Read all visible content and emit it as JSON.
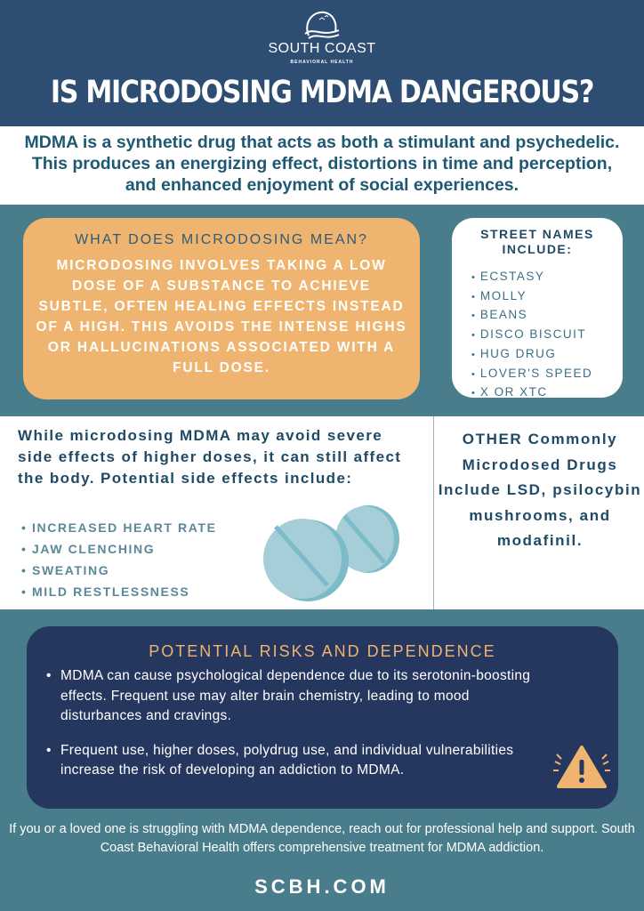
{
  "brand": {
    "name": "SOUTH COAST",
    "subtitle": "BEHAVIORAL HEALTH"
  },
  "title": "IS MICRODOSING MDMA DANGEROUS?",
  "intro": "MDMA is a synthetic drug that acts as both a stimulant and psychedelic. This produces an energizing effect, distortions in time and perception, and enhanced enjoyment of social experiences.",
  "microdosing": {
    "heading": "WHAT DOES MICRODOSING MEAN?",
    "body": "MICRODOSING INVOLVES TAKING A LOW DOSE OF A SUBSTANCE TO ACHIEVE SUBTLE, OFTEN HEALING EFFECTS INSTEAD OF A HIGH. THIS AVOIDS THE INTENSE HIGHS OR HALLUCINATIONS ASSOCIATED WITH A FULL DOSE."
  },
  "street_names": {
    "heading": "STREET NAMES INCLUDE:",
    "items": [
      "ECSTASY",
      "MOLLY",
      "BEANS",
      "DISCO BISCUIT",
      "HUG DRUG",
      "LOVER'S SPEED",
      "X OR XTC"
    ]
  },
  "side_effects": {
    "intro": "While microdosing MDMA may avoid severe side effects of higher doses, it can still affect the body. Potential side effects include:",
    "items": [
      "INCREASED HEART RATE",
      "JAW CLENCHING",
      "SWEATING",
      "MILD RESTLESSNESS"
    ]
  },
  "other": "OTHER Commonly Microdosed Drugs Include LSD, psilocybin mushrooms, and modafinil.",
  "risks": {
    "heading": "POTENTIAL RISKS AND DEPENDENCE",
    "items": [
      "MDMA can cause psychological dependence due to its serotonin-boosting effects. Frequent use may alter brain chemistry, leading to mood disturbances and cravings.",
      "Frequent use, higher doses, polydrug use, and individual vulnerabilities increase the risk of developing an addiction to MDMA."
    ]
  },
  "footer": "If you or a loved one is struggling with MDMA dependence, reach out for professional help and support. South Coast Behavioral Health offers comprehensive treatment for MDMA addiction.",
  "website": "SCBH.COM",
  "colors": {
    "navy": "#2d4d72",
    "teal": "#4a7d8c",
    "orange": "#efb46f",
    "dark_navy": "#25375f"
  }
}
